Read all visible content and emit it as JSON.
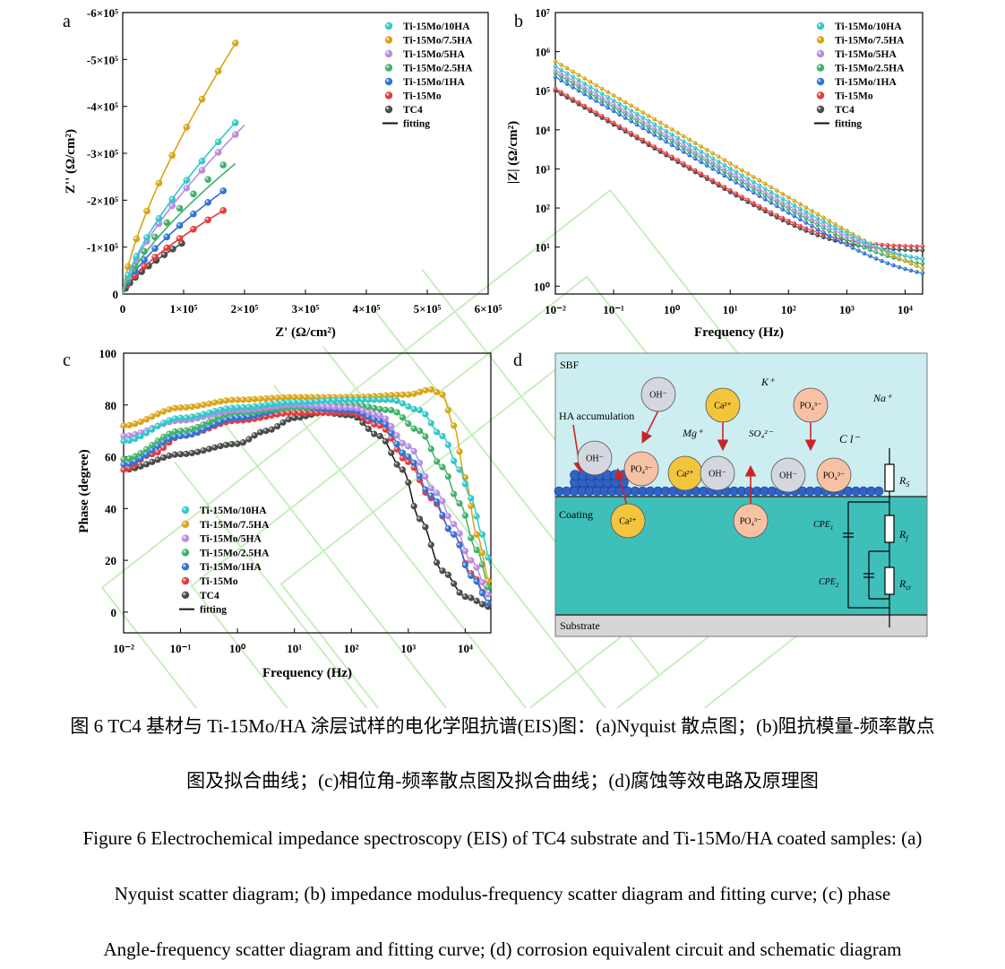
{
  "colors": {
    "10HA": "#33c6c9",
    "7.5HA": "#d9a415",
    "5HA": "#b78ce3",
    "2.5HA": "#40b06a",
    "1HA": "#2f73d6",
    "Mo": "#e23b3b",
    "TC4": "#4a4a4a",
    "fit": "#111111",
    "sbf_bg": "#cdeef0",
    "coating_bg": "#3fbfb9",
    "substrate_bg": "#d6d6d6",
    "beads": "#2f63c8",
    "arrow": "#c8252a",
    "watermark": "#9be28a"
  },
  "chart_data": [
    {
      "panel": "a",
      "type": "scatter",
      "title": "",
      "xlabel": "Z' (Ω/cm²)",
      "ylabel": "Z'' (Ω/cm²)",
      "xlim": [
        0,
        600000
      ],
      "ylim": [
        0,
        -600000
      ],
      "x_ticks": [
        "0",
        "1×10⁵",
        "2×10⁵",
        "3×10⁵",
        "4×10⁵",
        "5×10⁵",
        "6×10⁵"
      ],
      "y_ticks": [
        "0",
        "-1×10⁵",
        "-2×10⁵",
        "-3×10⁵",
        "-4×10⁵",
        "-5×10⁵",
        "-6×10⁵"
      ],
      "legend": [
        "Ti-15Mo/10HA",
        "Ti-15Mo/7.5HA",
        "Ti-15Mo/5HA",
        "Ti-15Mo/2.5HA",
        "Ti-15Mo/1HA",
        "Ti-15Mo",
        "TC4",
        "fitting"
      ],
      "series": [
        {
          "name": "Ti-15Mo/10HA",
          "key": "10HA",
          "end": [
            185000,
            365000
          ],
          "fit_end": [
            188000,
            370000
          ]
        },
        {
          "name": "Ti-15Mo/7.5HA",
          "key": "7.5HA",
          "end": [
            185000,
            535000
          ],
          "fit_end": [
            188000,
            540000
          ]
        },
        {
          "name": "Ti-15Mo/5HA",
          "key": "5HA",
          "end": [
            185000,
            340000
          ],
          "fit_end": [
            200000,
            360000
          ]
        },
        {
          "name": "Ti-15Mo/2.5HA",
          "key": "2.5HA",
          "end": [
            165000,
            275000
          ],
          "fit_end": [
            185000,
            278000
          ]
        },
        {
          "name": "Ti-15Mo/1HA",
          "key": "1HA",
          "end": [
            165000,
            220000
          ],
          "fit_end": [
            168000,
            222000
          ]
        },
        {
          "name": "Ti-15Mo",
          "key": "Mo",
          "end": [
            165000,
            178000
          ],
          "fit_end": [
            168000,
            180000
          ]
        },
        {
          "name": "TC4",
          "key": "TC4",
          "end": [
            97000,
            108000
          ],
          "fit_end": [
            100000,
            110000
          ]
        }
      ]
    },
    {
      "panel": "b",
      "type": "line",
      "xlabel": "Frequency (Hz)",
      "ylabel": "|Z| (Ω/cm²)",
      "xscale": "log",
      "yscale": "log",
      "xlim_log": [
        -2,
        4.3
      ],
      "ylim_log": [
        -0.2,
        7
      ],
      "x_ticks": [
        "10⁻²",
        "10⁻¹",
        "10⁰",
        "10¹",
        "10²",
        "10³",
        "10⁴"
      ],
      "y_ticks": [
        "10⁰",
        "10¹",
        "10²",
        "10³",
        "10⁴",
        "10⁵",
        "10⁶",
        "10⁷"
      ],
      "legend": [
        "Ti-15Mo/10HA",
        "Ti-15Mo/7.5HA",
        "Ti-15Mo/5HA",
        "Ti-15Mo/2.5HA",
        "Ti-15Mo/1HA",
        "Ti-15Mo",
        "TC4",
        "fitting"
      ],
      "series": [
        {
          "name": "Ti-15Mo/10HA",
          "key": "10HA",
          "logZ_low": 5.62,
          "logR": 0.55
        },
        {
          "name": "Ti-15Mo/7.5HA",
          "key": "7.5HA",
          "logZ_low": 5.75,
          "logR": 0.0
        },
        {
          "name": "Ti-15Mo/5HA",
          "key": "5HA",
          "logZ_low": 5.52,
          "logR": 0.6
        },
        {
          "name": "Ti-15Mo/2.5HA",
          "key": "2.5HA",
          "logZ_low": 5.45,
          "logR": 0.45
        },
        {
          "name": "Ti-15Mo/1HA",
          "key": "1HA",
          "logZ_low": 5.35,
          "logR": 0.15
        },
        {
          "name": "Ti-15Mo",
          "key": "Mo",
          "logZ_low": 5.05,
          "logR": 1.0
        },
        {
          "name": "TC4",
          "key": "TC4",
          "logZ_low": 5.0,
          "logR": 0.9
        }
      ]
    },
    {
      "panel": "c",
      "type": "line",
      "xlabel": "Frequency (Hz)",
      "ylabel": "Phase (degree)",
      "xscale": "log",
      "xlim_log": [
        -2,
        4.45
      ],
      "ylim": [
        -8,
        100
      ],
      "x_ticks": [
        "10⁻²",
        "10⁻¹",
        "10⁰",
        "10¹",
        "10²",
        "10³",
        "10⁴"
      ],
      "y_ticks": [
        "0",
        "20",
        "40",
        "60",
        "80",
        "100"
      ],
      "legend": [
        "Ti-15Mo/10HA",
        "Ti-15Mo/7.5HA",
        "Ti-15Mo/5HA",
        "Ti-15Mo/2.5HA",
        "Ti-15Mo/1HA",
        "Ti-15Mo",
        "TC4",
        "fitting"
      ],
      "series": [
        {
          "name": "Ti-15Mo/10HA",
          "key": "10HA",
          "logf": [
            -2,
            -1,
            0,
            1,
            2,
            2.7,
            3.2,
            3.6,
            3.9,
            4.1,
            4.3,
            4.45
          ],
          "phase": [
            66,
            75,
            79,
            81,
            82,
            82,
            78,
            68,
            55,
            44,
            30,
            18
          ]
        },
        {
          "name": "Ti-15Mo/7.5HA",
          "key": "7.5HA",
          "logf": [
            -2,
            -1,
            0,
            1,
            2,
            3,
            3.4,
            3.6,
            3.8,
            4.0,
            4.2,
            4.45
          ],
          "phase": [
            72,
            79,
            82,
            83,
            83,
            84,
            86,
            84,
            72,
            52,
            30,
            10
          ]
        },
        {
          "name": "Ti-15Mo/5HA",
          "key": "5HA",
          "logf": [
            -2,
            -1,
            0,
            1,
            2,
            2.5,
            3.0,
            3.5,
            3.8,
            4.1,
            4.45
          ],
          "phase": [
            68,
            74,
            78,
            80,
            79,
            76,
            64,
            46,
            34,
            20,
            6
          ]
        },
        {
          "name": "Ti-15Mo/2.5HA",
          "key": "2.5HA",
          "logf": [
            -2,
            -1,
            0,
            1,
            2,
            2.7,
            3.2,
            3.6,
            3.9,
            4.2,
            4.45
          ],
          "phase": [
            59,
            70,
            77,
            79,
            80,
            78,
            70,
            56,
            42,
            24,
            8
          ]
        },
        {
          "name": "Ti-15Mo/1HA",
          "key": "1HA",
          "logf": [
            -2,
            -1,
            0,
            1,
            2,
            2.5,
            3.0,
            3.4,
            3.8,
            4.1,
            4.45
          ],
          "phase": [
            57,
            68,
            75,
            79,
            78,
            74,
            60,
            45,
            30,
            14,
            3
          ]
        },
        {
          "name": "Ti-15Mo",
          "key": "Mo",
          "logf": [
            -2,
            -1.5,
            -1,
            0,
            1,
            2,
            2.5,
            3.0,
            3.4,
            3.8,
            4.1,
            4.45
          ],
          "phase": [
            55,
            61,
            68,
            74,
            77,
            77,
            72,
            58,
            44,
            30,
            15,
            3
          ]
        },
        {
          "name": "TC4",
          "key": "TC4",
          "logf": [
            -2,
            -1,
            0,
            0.5,
            1,
            1.5,
            2,
            2.5,
            2.9,
            3.2,
            3.6,
            4.0,
            4.45
          ],
          "phase": [
            55,
            61,
            65,
            70,
            75,
            77,
            76,
            68,
            55,
            36,
            16,
            6,
            2
          ]
        }
      ]
    }
  ],
  "panel_labels": {
    "a": "a",
    "b": "b",
    "c": "c",
    "d": "d"
  },
  "schematic": {
    "sbf_label": "SBF",
    "coating_label": "Coating",
    "substrate_label": "Substrate",
    "hac_label": "HA accumulation",
    "ions_text": [
      "K⁺",
      "Na⁺",
      "Mg⁺",
      "SO₄²⁻",
      "C l⁻"
    ],
    "oh_label": "OH⁻",
    "ca_label": "Ca²⁺",
    "po_label": "PO₄³⁻",
    "rs": "R",
    "rs_sub": "S",
    "rf": "R",
    "rf_sub": "f",
    "rct": "R",
    "rct_sub": "ct",
    "cpe1": "CPE",
    "cpe1_sub": "1",
    "cpe2": "CPE",
    "cpe2_sub": "2"
  },
  "caption": {
    "cn_line1": "图 6 TC4 基材与 Ti-15Mo/HA 涂层试样的电化学阻抗谱(EIS)图：(a)Nyquist 散点图；(b)阻抗模量-频率散点",
    "cn_line2": "图及拟合曲线；(c)相位角-频率散点图及拟合曲线；(d)腐蚀等效电路及原理图",
    "en_line1": "Figure 6 Electrochemical impedance spectroscopy (EIS) of TC4 substrate and Ti-15Mo/HA coated samples: (a)",
    "en_line2": "Nyquist scatter diagram; (b) impedance modulus-frequency scatter diagram and fitting curve; (c) phase",
    "en_line3": "Angle-frequency scatter diagram and fitting curve; (d) corrosion equivalent circuit and schematic diagram"
  }
}
